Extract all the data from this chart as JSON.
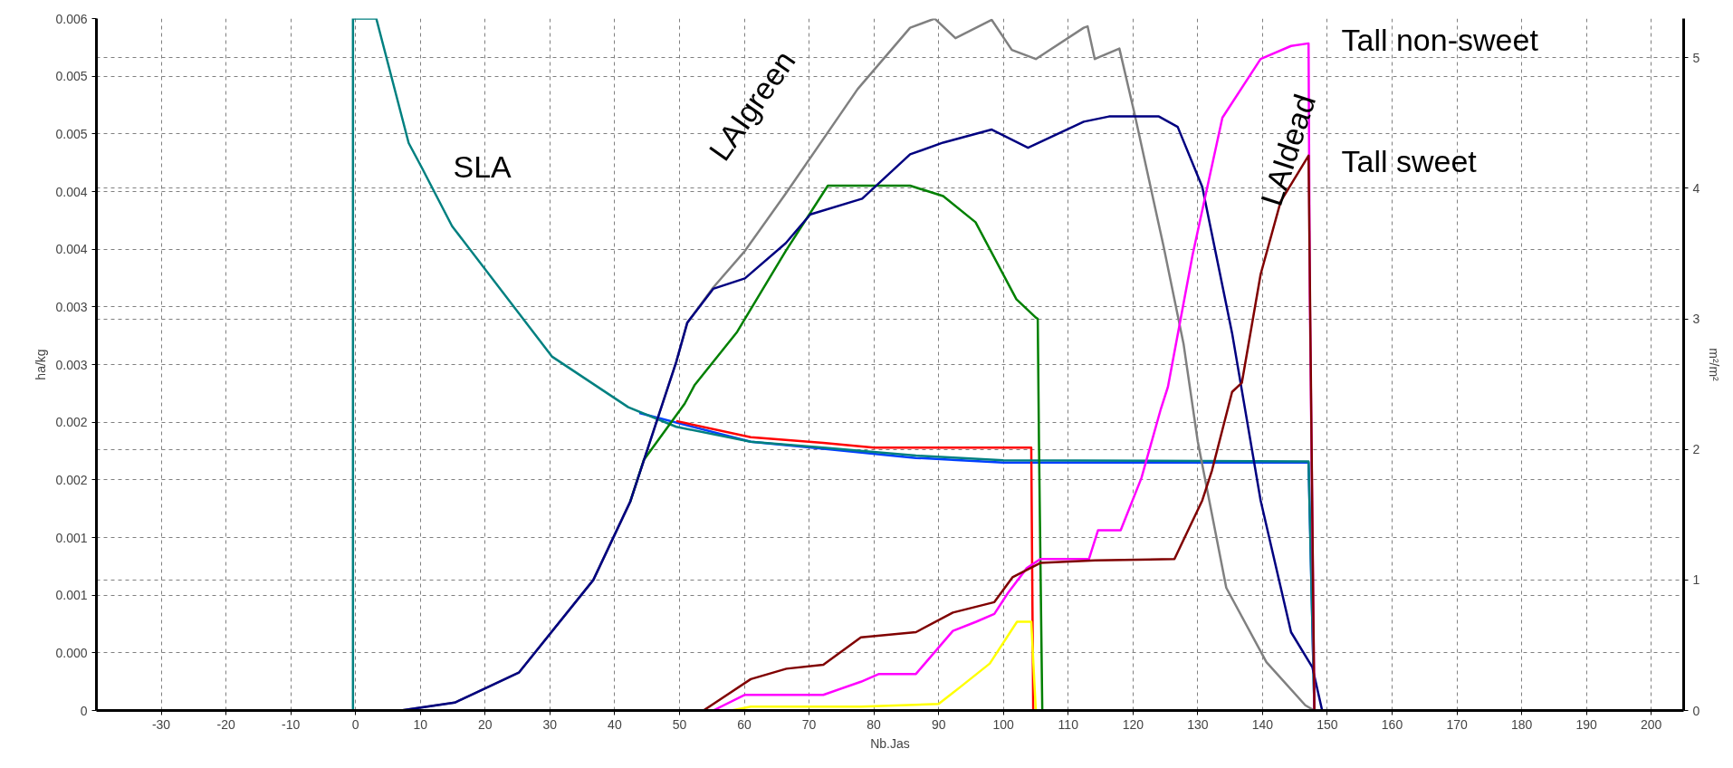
{
  "chart_data": {
    "type": "line",
    "xlabel": "Nb.Jas",
    "ylabel": "ha/kg",
    "y2label": "m²/m²",
    "xlim": [
      -40,
      205
    ],
    "xticks": [
      -30,
      -20,
      -10,
      0,
      10,
      20,
      30,
      40,
      50,
      60,
      70,
      80,
      90,
      100,
      110,
      120,
      130,
      140,
      150,
      160,
      170,
      180,
      190,
      200
    ],
    "ylim": [
      0,
      0.006
    ],
    "yticks": [
      0,
      {
        "value": 0.0005,
        "label": "0.000"
      },
      0.001,
      {
        "value": 0.0015,
        "label": "0.001"
      },
      0.002,
      {
        "value": 0.0025,
        "label": "0.002"
      },
      0.003,
      {
        "value": 0.0035,
        "label": "0.003"
      },
      0.004,
      {
        "value": 0.0045,
        "label": "0.004"
      },
      0.005,
      {
        "value": 0.0055,
        "label": "0.005"
      },
      0.006
    ],
    "y2lim": [
      0,
      5.3
    ],
    "y2ticks": [
      0,
      1,
      2,
      3,
      4,
      5
    ],
    "grid": true,
    "line_style": "solid",
    "marker": "none",
    "series": [
      {
        "color": "#0040ff",
        "x": [
          43.8,
          61,
          72.2,
          86.5,
          100,
          147.1,
          148
        ],
        "values": [
          0.00258,
          0.00233,
          0.00227,
          0.00219,
          0.00215,
          0.00215,
          0
        ]
      },
      {
        "color": "#ff0000",
        "x": [
          49.5,
          61,
          72.2,
          80,
          104.3,
          104.6
        ],
        "values": [
          0.00251,
          0.00237,
          0.00232,
          0.00228,
          0.00228,
          0
        ]
      },
      {
        "color": "#008080",
        "x": [
          -0.4,
          -0.4,
          3.2,
          8.2,
          10.2,
          14.9,
          30.3,
          42.1,
          49.5,
          61,
          72.2,
          86.5,
          100,
          147.1,
          148
        ],
        "values": [
          0,
          0.006,
          0.006,
          0.00492,
          0.00471,
          0.0042,
          0.00307,
          0.00263,
          0.00246,
          0.00233,
          0.00228,
          0.00221,
          0.00217,
          0.00216,
          0
        ]
      },
      {
        "color": "#808080",
        "axis": "y2",
        "x": [
          7,
          15.3,
          25.2,
          36.7,
          42.4,
          49.5,
          51.2,
          55.2,
          60.1,
          66.4,
          77.5,
          85.6,
          89.4,
          92.6,
          98.2,
          101.3,
          105,
          112.4,
          113,
          114.1,
          117.9,
          120.2,
          124.7,
          127.8,
          130,
          134.4,
          140.6,
          146.6,
          148
        ],
        "values": [
          0,
          0.06,
          0.29,
          1.0,
          1.6,
          2.67,
          2.97,
          3.24,
          3.52,
          3.96,
          4.76,
          5.23,
          5.3,
          5.15,
          5.29,
          5.06,
          4.99,
          5.23,
          5.24,
          4.99,
          5.07,
          4.58,
          3.56,
          2.81,
          2.06,
          0.94,
          0.37,
          0.04,
          0
        ]
      },
      {
        "color": "#008000",
        "axis": "y2",
        "x": [
          42.4,
          44.5,
          50.8,
          52.3,
          58.9,
          66.4,
          72.9,
          85.6,
          90.7,
          95.7,
          102,
          105,
          105.3,
          105.5,
          106
        ],
        "values": [
          1.6,
          1.92,
          2.35,
          2.49,
          2.9,
          3.52,
          4.02,
          4.02,
          3.94,
          3.74,
          3.15,
          3.01,
          3.0,
          2.0,
          0
        ]
      },
      {
        "color": "#000080",
        "axis": "y2",
        "x": [
          7,
          15.3,
          25.2,
          36.7,
          42.4,
          49.5,
          51.2,
          55.2,
          60.1,
          66.4,
          70.2,
          78.2,
          85.6,
          90.7,
          98.2,
          103.8,
          112.4,
          116.3,
          124,
          126.9,
          130.7,
          135.3,
          139.7,
          144.4,
          147.7,
          149.2
        ],
        "values": [
          0,
          0.06,
          0.29,
          1.0,
          1.6,
          2.67,
          2.97,
          3.23,
          3.31,
          3.58,
          3.8,
          3.92,
          4.26,
          4.35,
          4.45,
          4.31,
          4.51,
          4.55,
          4.55,
          4.47,
          4.01,
          2.89,
          1.61,
          0.6,
          0.33,
          0
        ]
      },
      {
        "color": "#ff00ff",
        "axis": "y2",
        "x": [
          55.2,
          60.1,
          72.2,
          78,
          80.8,
          86.5,
          92.2,
          95.8,
          98.6,
          100.7,
          103.6,
          105.7,
          113.2,
          114.6,
          118.1,
          121.3,
          124.3,
          125.4,
          129.2,
          133.8,
          139.7,
          144.4,
          147.1,
          147.3,
          148
        ],
        "values": [
          0,
          0.12,
          0.12,
          0.22,
          0.28,
          0.28,
          0.61,
          0.68,
          0.74,
          0.9,
          1.09,
          1.16,
          1.16,
          1.38,
          1.38,
          1.78,
          2.31,
          2.48,
          3.49,
          4.54,
          4.99,
          5.09,
          5.11,
          3.19,
          0
        ]
      },
      {
        "color": "#800000",
        "axis": "y2",
        "x": [
          53.7,
          61,
          66.5,
          72.2,
          78,
          86.5,
          92.2,
          98.6,
          101.4,
          105.7,
          114.2,
          126.4,
          130.7,
          132.2,
          135.3,
          136.8,
          139.7,
          142.8,
          147.1,
          148
        ],
        "values": [
          0,
          0.24,
          0.32,
          0.35,
          0.56,
          0.6,
          0.75,
          0.83,
          1.02,
          1.13,
          1.15,
          1.16,
          1.61,
          1.84,
          2.44,
          2.51,
          3.34,
          3.9,
          4.25,
          0
        ]
      },
      {
        "color": "#ffff00",
        "axis": "y2",
        "x": [
          58,
          61,
          78,
          90,
          93.6,
          97.9,
          102.1,
          104.3,
          105
        ],
        "values": [
          0,
          0.03,
          0.03,
          0.05,
          0.19,
          0.36,
          0.68,
          0.68,
          0
        ]
      }
    ],
    "annotations": [
      "SLA",
      "LAIgreen",
      "Tall non-sweet",
      "LAIdead",
      "Tall sweet"
    ]
  }
}
